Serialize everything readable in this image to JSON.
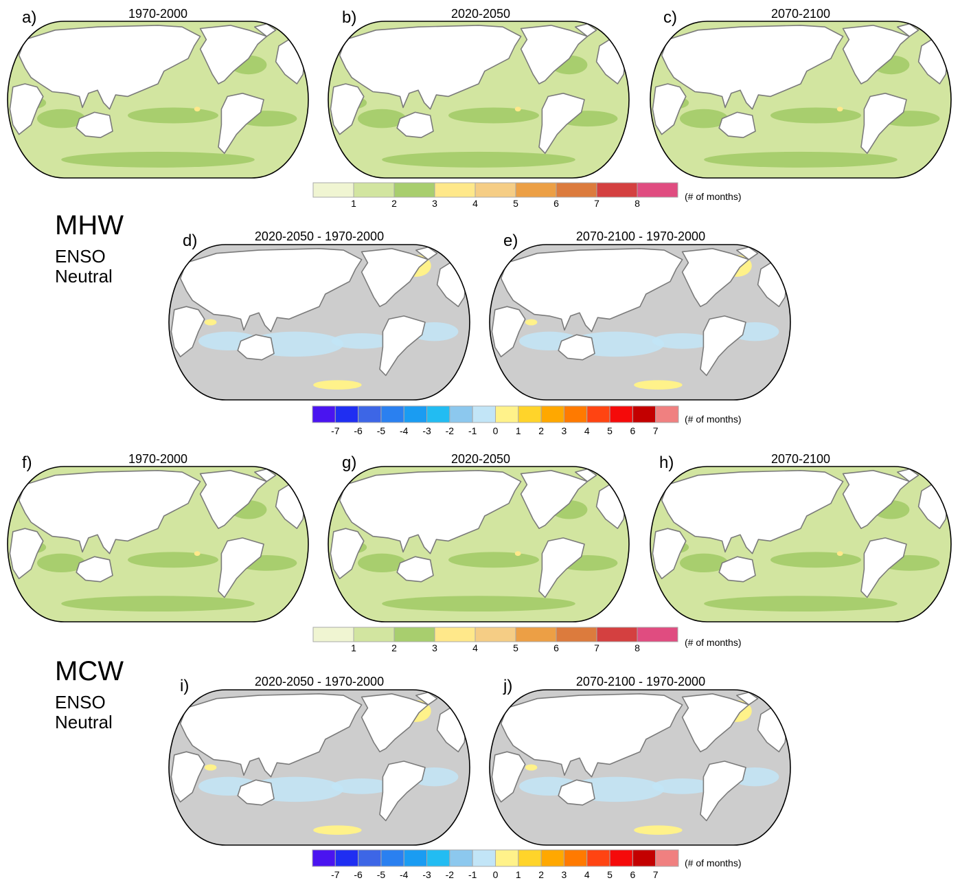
{
  "colors": {
    "land": "#ffffff",
    "coast": "#7a7a7a",
    "frame": "#000000",
    "neutral_diff": "#cdcdcd",
    "neg1": "#c2e5f7",
    "pos0": "#fff28a"
  },
  "abs_colorbar": {
    "colors": [
      "#f0f5d2",
      "#d2e5a0",
      "#a8ce6e",
      "#ffe88a",
      "#f5cd85",
      "#ec9f45",
      "#dc7b3d",
      "#d44040",
      "#e04c80"
    ],
    "labels": [
      "1",
      "2",
      "3",
      "4",
      "5",
      "6",
      "7",
      "8"
    ],
    "units": "(# of months)"
  },
  "diff_colorbar": {
    "colors": [
      "#4a14f0",
      "#1f2ef2",
      "#3d66e6",
      "#2a80f0",
      "#1a9cf2",
      "#22bcf2",
      "#8cc8ee",
      "#c2e5f7",
      "#fff28a",
      "#ffd42a",
      "#ffa800",
      "#ff7a00",
      "#ff4412",
      "#f50a0a",
      "#c30000",
      "#f08080"
    ],
    "labels": [
      "-7",
      "-6",
      "-5",
      "-4",
      "-3",
      "-2",
      "-1",
      "0",
      "1",
      "2",
      "3",
      "4",
      "5",
      "6",
      "7"
    ],
    "units": "(# of months)"
  },
  "groups": [
    {
      "name": "MHW",
      "subtitle_line1": "ENSO",
      "subtitle_line2": "Neutral"
    },
    {
      "name": "MCW",
      "subtitle_line1": "ENSO",
      "subtitle_line2": "Neutral"
    }
  ],
  "panels": [
    {
      "letter": "a)",
      "title": "1970-2000",
      "kind": "abs",
      "dominant_value_months": "1-2",
      "shown_value_range_months": [
        1,
        4
      ]
    },
    {
      "letter": "b)",
      "title": "2020-2050",
      "kind": "abs",
      "dominant_value_months": "1-2",
      "shown_value_range_months": [
        1,
        4
      ]
    },
    {
      "letter": "c)",
      "title": "2070-2100",
      "kind": "abs",
      "dominant_value_months": "1-2",
      "shown_value_range_months": [
        1,
        3
      ]
    },
    {
      "letter": "d)",
      "title": "2020-2050 - 1970-2000",
      "kind": "diff",
      "dominant_value_months": "-1 to 0",
      "shown_value_range_months": [
        -1,
        1
      ]
    },
    {
      "letter": "e)",
      "title": "2070-2100 - 1970-2000",
      "kind": "diff",
      "dominant_value_months": "-1 to 0",
      "shown_value_range_months": [
        -1,
        1
      ]
    },
    {
      "letter": "f)",
      "title": "1970-2000",
      "kind": "abs",
      "dominant_value_months": "1-2",
      "shown_value_range_months": [
        1,
        4
      ]
    },
    {
      "letter": "g)",
      "title": "2020-2050",
      "kind": "abs",
      "dominant_value_months": "1-2",
      "shown_value_range_months": [
        1,
        4
      ]
    },
    {
      "letter": "h)",
      "title": "2070-2100",
      "kind": "abs",
      "dominant_value_months": "1-2",
      "shown_value_range_months": [
        1,
        4
      ]
    },
    {
      "letter": "i)",
      "title": "2020-2050 - 1970-2000",
      "kind": "diff",
      "dominant_value_months": "-1 to 0",
      "shown_value_range_months": [
        -1,
        1
      ]
    },
    {
      "letter": "j)",
      "title": "2070-2100 - 1970-2000",
      "kind": "diff",
      "dominant_value_months": "-1 to 0",
      "shown_value_range_months": [
        -1,
        1
      ]
    }
  ]
}
